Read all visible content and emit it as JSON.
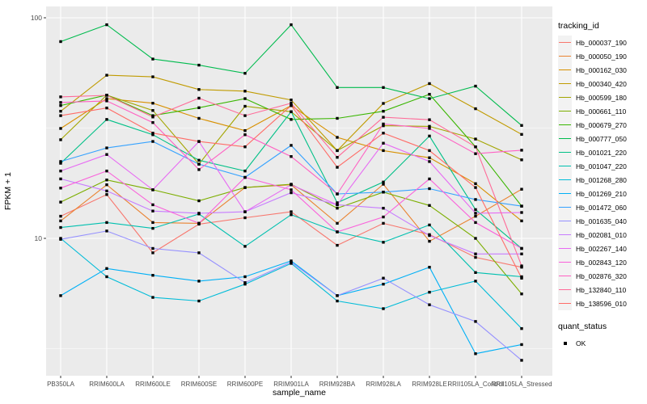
{
  "figure": {
    "x_axis_title": "sample_name",
    "y_axis_title": "FPKM + 1",
    "legend1_title": "tracking_id",
    "legend2_title": "quant_status",
    "quant_status_items": [
      "OK"
    ]
  },
  "colors": {
    "panel_bg": "#EBEBEB",
    "grid": "#FFFFFF",
    "tick_text": "#4D4D4D",
    "title_text": "#000000",
    "legend_key_bg": "#F2F2F2",
    "point": "#000000"
  },
  "chart_data": {
    "type": "line",
    "title": "",
    "xlabel": "sample_name",
    "ylabel": "FPKM + 1",
    "y_scale": "log10",
    "ylim": [
      2.4,
      112
    ],
    "y_major_ticks": [
      100,
      10
    ],
    "y_minor_gridlines": [
      31.623,
      3.162
    ],
    "grid": true,
    "legend_position": "right",
    "point_shape": "filled-square",
    "point_status_label": "OK",
    "categories": [
      "PB350LA",
      "RRIM600LA",
      "RRIM600LE",
      "RRIM600SE",
      "RRIM600PE",
      "RRIM901LA",
      "RRIM928BA",
      "RRIM928LA",
      "RRIM928LE",
      "RRII105LA_Control",
      "RRII105LA_Stressed"
    ],
    "series": [
      {
        "name": "Hb_000037_190",
        "color": "#F8766D",
        "values": [
          12.6,
          15.8,
          8.6,
          11.6,
          12.4,
          13.2,
          9.3,
          11.7,
          10.4,
          8.2,
          7.4
        ]
      },
      {
        "name": "Hb_000050_190",
        "color": "#EA8331",
        "values": [
          12.0,
          17.5,
          11.8,
          11.7,
          17.0,
          17.5,
          11.7,
          17.6,
          9.7,
          12.6,
          16.7
        ]
      },
      {
        "name": "Hb_000162_030",
        "color": "#D89000",
        "values": [
          31.5,
          43.0,
          41.0,
          35.0,
          30.8,
          40.0,
          28.7,
          25.0,
          23.2,
          17.7,
          12.0
        ]
      },
      {
        "name": "Hb_000340_420",
        "color": "#C09B00",
        "values": [
          37.7,
          54.9,
          54.0,
          47.3,
          46.5,
          42.4,
          25.0,
          40.9,
          50.3,
          38.7,
          29.6
        ]
      },
      {
        "name": "Hb_000599_180",
        "color": "#A3A500",
        "values": [
          28.0,
          44.6,
          38.0,
          21.7,
          39.7,
          37.5,
          25.0,
          32.4,
          32.2,
          28.2,
          22.7
        ]
      },
      {
        "name": "Hb_000661_110",
        "color": "#7CAE00",
        "values": [
          14.6,
          18.4,
          16.6,
          14.8,
          17.0,
          17.6,
          13.7,
          16.2,
          14.1,
          10.0,
          5.6
        ]
      },
      {
        "name": "Hb_000679_270",
        "color": "#39B600",
        "values": [
          40.0,
          44.6,
          36.0,
          39.1,
          43.0,
          34.6,
          35.0,
          37.7,
          45.0,
          26.0,
          14.0
        ]
      },
      {
        "name": "Hb_000777_050",
        "color": "#00BB4E",
        "values": [
          78.0,
          93.0,
          65.0,
          61.0,
          56.0,
          93.0,
          48.3,
          48.3,
          43.0,
          49.0,
          32.5
        ]
      },
      {
        "name": "Hb_001021_220",
        "color": "#00C087",
        "values": [
          21.9,
          34.6,
          29.5,
          22.6,
          20.2,
          37.5,
          14.5,
          18.0,
          29.1,
          13.5,
          9.0
        ]
      },
      {
        "name": "Hb_001047_220",
        "color": "#00C0AF",
        "values": [
          11.2,
          11.8,
          11.1,
          12.9,
          9.2,
          12.8,
          10.7,
          9.6,
          11.5,
          7.0,
          6.7
        ]
      },
      {
        "name": "Hb_001268_280",
        "color": "#00BCD8",
        "values": [
          10.0,
          6.7,
          5.4,
          5.2,
          6.2,
          7.7,
          5.2,
          4.8,
          5.7,
          6.4,
          3.9
        ]
      },
      {
        "name": "Hb_001269_210",
        "color": "#00B0F6",
        "values": [
          5.5,
          7.3,
          6.8,
          6.4,
          6.7,
          7.9,
          5.5,
          6.2,
          7.4,
          3.0,
          3.3
        ]
      },
      {
        "name": "Hb_001472_060",
        "color": "#35A2FF",
        "values": [
          22.3,
          25.7,
          27.5,
          21.7,
          18.9,
          26.4,
          15.9,
          16.2,
          16.8,
          15.0,
          14.0
        ]
      },
      {
        "name": "Hb_001635_040",
        "color": "#9590FF",
        "values": [
          9.9,
          10.8,
          9.0,
          8.6,
          6.3,
          7.8,
          5.5,
          6.6,
          5.0,
          4.2,
          2.8
        ]
      },
      {
        "name": "Hb_002081_010",
        "color": "#C77CFF",
        "values": [
          18.6,
          16.4,
          13.3,
          13.0,
          13.2,
          16.1,
          14.2,
          13.7,
          10.3,
          8.5,
          8.5
        ]
      },
      {
        "name": "Hb_002267_140",
        "color": "#E76BF3",
        "values": [
          20.2,
          24.0,
          16.6,
          27.5,
          13.2,
          17.5,
          14.2,
          27.0,
          22.3,
          13.0,
          13.1
        ]
      },
      {
        "name": "Hb_002843_120",
        "color": "#FA62DB",
        "values": [
          16.9,
          20.2,
          14.2,
          11.7,
          18.9,
          16.6,
          10.7,
          12.5,
          18.6,
          11.8,
          9.0
        ]
      },
      {
        "name": "Hb_002876_320",
        "color": "#FF61C3",
        "values": [
          41.3,
          42.0,
          33.5,
          20.5,
          29.5,
          23.5,
          15.9,
          33.0,
          31.5,
          24.2,
          25.1
        ]
      },
      {
        "name": "Hb_132840_110",
        "color": "#FF6A98",
        "values": [
          43.8,
          44.5,
          35.5,
          43.2,
          36.0,
          41.0,
          23.3,
          35.4,
          34.5,
          26.0,
          7.5
        ]
      },
      {
        "name": "Hb_138596_010",
        "color": "#FF6C67",
        "values": [
          36.0,
          39.0,
          30.0,
          27.5,
          26.0,
          40.0,
          21.0,
          30.0,
          25.0,
          17.0,
          6.6
        ]
      }
    ]
  }
}
